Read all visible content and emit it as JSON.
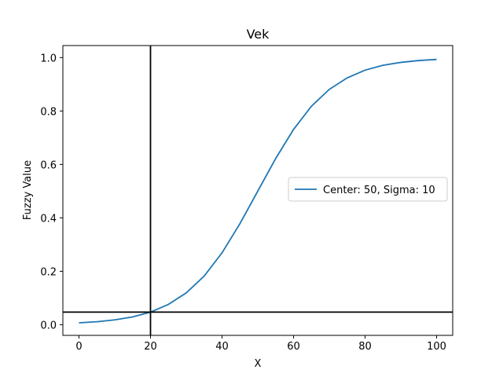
{
  "chart_data": {
    "type": "line",
    "title": "Vek",
    "xlabel": "X",
    "ylabel": "Fuzzy Value",
    "xlim": [
      -4.5,
      104.5
    ],
    "ylim": [
      -0.04,
      1.045
    ],
    "xticks": [
      0,
      20,
      40,
      60,
      80,
      100
    ],
    "yticks": [
      0.0,
      0.2,
      0.4,
      0.6,
      0.8,
      1.0
    ],
    "xtick_labels": [
      "0",
      "20",
      "40",
      "60",
      "80",
      "100"
    ],
    "ytick_labels": [
      "0.0",
      "0.2",
      "0.4",
      "0.6",
      "0.8",
      "1.0"
    ],
    "grid": false,
    "legend_position": "center-right",
    "series": [
      {
        "name": "Center: 50, Sigma: 10",
        "color": "#1f77b4",
        "x": [
          0,
          5,
          10,
          15,
          20,
          25,
          30,
          35,
          40,
          45,
          50,
          55,
          60,
          65,
          70,
          75,
          80,
          85,
          90,
          95,
          100
        ],
        "y": [
          0.007,
          0.011,
          0.018,
          0.029,
          0.047,
          0.076,
          0.119,
          0.182,
          0.269,
          0.378,
          0.5,
          0.622,
          0.731,
          0.818,
          0.881,
          0.924,
          0.953,
          0.971,
          0.982,
          0.989,
          0.993
        ]
      }
    ],
    "reference_lines": [
      {
        "orientation": "vertical",
        "x": 20,
        "color": "#000000"
      },
      {
        "orientation": "horizontal",
        "y": 0.047,
        "color": "#000000"
      }
    ]
  }
}
